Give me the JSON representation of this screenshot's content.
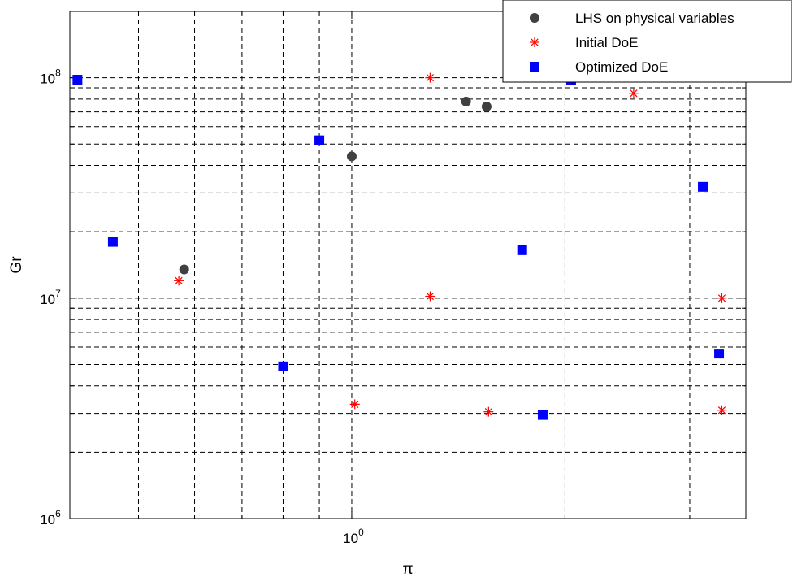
{
  "chart_data": {
    "type": "scatter",
    "xlabel": "π",
    "ylabel": "Gr",
    "xscale": "log",
    "yscale": "log",
    "xlim": [
      0.4,
      3.6
    ],
    "ylim": [
      1000000,
      200000000
    ],
    "grid": true,
    "legend_position": "top-right",
    "x_tick_labels": [
      {
        "value": 1,
        "base": "10",
        "exp": "0"
      }
    ],
    "y_tick_labels": [
      {
        "value": 1000000,
        "base": "10",
        "exp": "6"
      },
      {
        "value": 10000000,
        "base": "10",
        "exp": "7"
      },
      {
        "value": 100000000,
        "base": "10",
        "exp": "8"
      }
    ],
    "series": [
      {
        "name": "LHS on physical variables",
        "marker": "circle",
        "color": "#404040",
        "points": [
          {
            "x": 0.58,
            "y": 13500000
          },
          {
            "x": 1.0,
            "y": 44000000
          },
          {
            "x": 1.45,
            "y": 78000000
          },
          {
            "x": 1.55,
            "y": 74000000
          }
        ]
      },
      {
        "name": "Initial DoE",
        "marker": "asterisk",
        "color": "#ff0000",
        "points": [
          {
            "x": 0.57,
            "y": 12000000
          },
          {
            "x": 1.01,
            "y": 3300000
          },
          {
            "x": 1.29,
            "y": 100000000
          },
          {
            "x": 1.29,
            "y": 10200000
          },
          {
            "x": 1.56,
            "y": 3050000
          },
          {
            "x": 2.5,
            "y": 85000000
          },
          {
            "x": 3.33,
            "y": 10000000
          },
          {
            "x": 3.33,
            "y": 3100000
          }
        ]
      },
      {
        "name": "Optimized DoE",
        "marker": "square",
        "color": "#0000ff",
        "points": [
          {
            "x": 0.41,
            "y": 98000000
          },
          {
            "x": 0.46,
            "y": 18000000
          },
          {
            "x": 0.8,
            "y": 4900000
          },
          {
            "x": 0.9,
            "y": 52000000
          },
          {
            "x": 1.74,
            "y": 16500000
          },
          {
            "x": 1.86,
            "y": 2950000
          },
          {
            "x": 2.04,
            "y": 98000000
          },
          {
            "x": 3.13,
            "y": 32000000
          },
          {
            "x": 3.3,
            "y": 5600000
          }
        ]
      }
    ]
  }
}
